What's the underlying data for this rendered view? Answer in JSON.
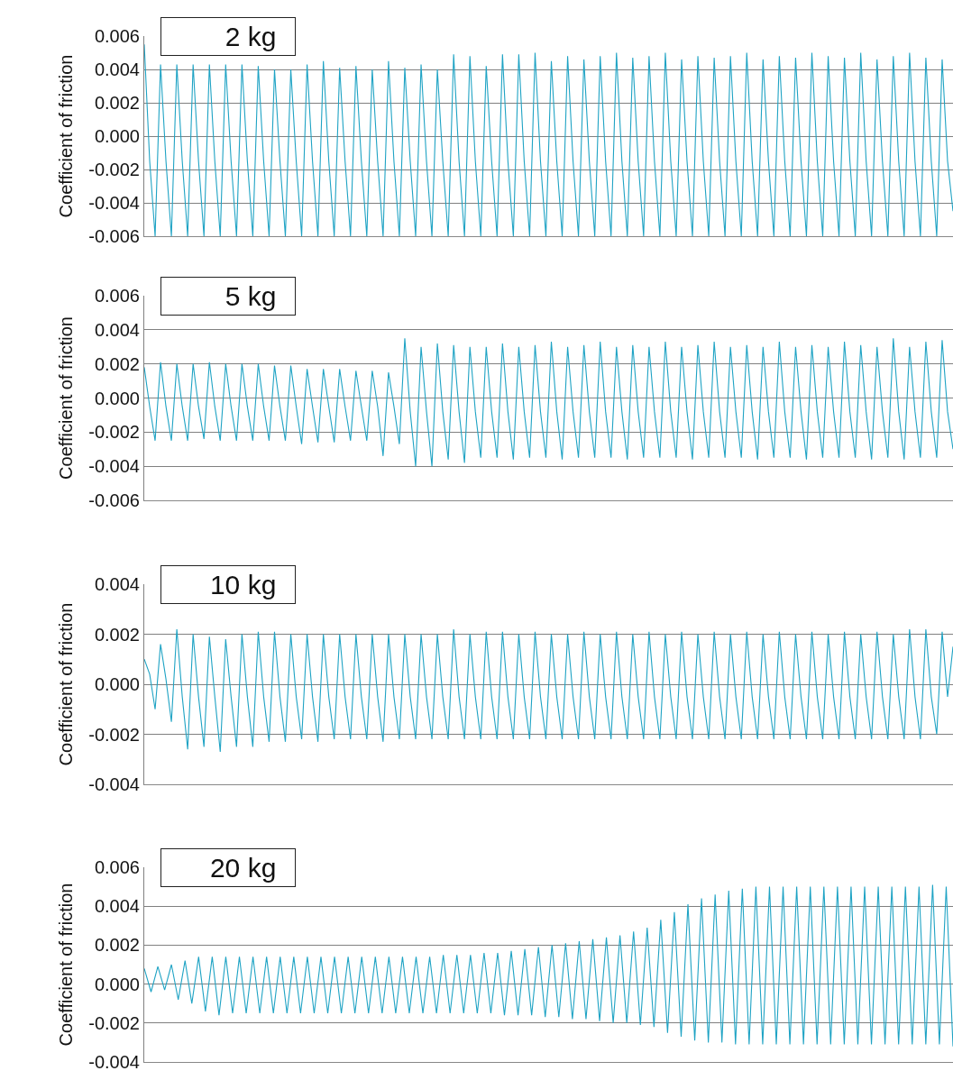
{
  "chart_data": [
    {
      "type": "line",
      "title": "2 kg",
      "ylabel": "Coefficient of friction",
      "ylim": [
        -0.006,
        0.006
      ],
      "yticks": [
        {
          "value": -0.006,
          "label": "-0.006"
        },
        {
          "value": -0.004,
          "label": "-0.004"
        },
        {
          "value": -0.002,
          "label": "-0.002"
        },
        {
          "value": 0,
          "label": "0.000"
        },
        {
          "value": 0.002,
          "label": "0.002"
        },
        {
          "value": 0.004,
          "label": "0.004"
        },
        {
          "value": 0.006,
          "label": "0.006"
        }
      ],
      "grid": "y",
      "tick_labels": "y",
      "marker": "none",
      "line_style": "solid",
      "categories": [
        null,
        null,
        null,
        null,
        null,
        null,
        null,
        null,
        null,
        null,
        null,
        null,
        null,
        null,
        null,
        null,
        null,
        null,
        null,
        null,
        null,
        null,
        null,
        null,
        null,
        null,
        null,
        null,
        null,
        null,
        null,
        null,
        null,
        null,
        null,
        null,
        null,
        null,
        null,
        null,
        null,
        null,
        null,
        null,
        null,
        null,
        null,
        null,
        null,
        null,
        null,
        null,
        null,
        null,
        null,
        null,
        null,
        null,
        null,
        null,
        null,
        null,
        null,
        null,
        null,
        null,
        null,
        null,
        null,
        null,
        null,
        null,
        null,
        null,
        null,
        null,
        null,
        null,
        null,
        null,
        null,
        null,
        null,
        null,
        null,
        null,
        null,
        null,
        null,
        null,
        null,
        null,
        null,
        null,
        null,
        null,
        null,
        null,
        null,
        null,
        null,
        null,
        null,
        null,
        null,
        null,
        null,
        null,
        null,
        null,
        null,
        null,
        null,
        null,
        null,
        null,
        null,
        null,
        null,
        null,
        null,
        null,
        null,
        null,
        null,
        null,
        null,
        null,
        null,
        null,
        null,
        null,
        null,
        null,
        null,
        null,
        null,
        null,
        null,
        null,
        null,
        null,
        null,
        null,
        null,
        null,
        null,
        null,
        null,
        null
      ],
      "series": [
        {
          "color": "#1fa3c4",
          "values": [
            0.0055,
            -0.0015,
            -0.006,
            0.0043,
            -0.0015,
            -0.006,
            0.0043,
            -0.0015,
            -0.006,
            0.0043,
            -0.0015,
            -0.006,
            0.0043,
            -0.0015,
            -0.006,
            0.0043,
            -0.0015,
            -0.006,
            0.0043,
            -0.0015,
            -0.006,
            0.0042,
            -0.0015,
            -0.006,
            0.004,
            -0.0015,
            -0.006,
            0.004,
            -0.0015,
            -0.006,
            0.0043,
            -0.0015,
            -0.006,
            0.0045,
            -0.0015,
            -0.006,
            0.0041,
            -0.0015,
            -0.006,
            0.0042,
            -0.0015,
            -0.006,
            0.004,
            -0.0015,
            -0.006,
            0.0045,
            -0.0015,
            -0.006,
            0.0041,
            -0.0015,
            -0.006,
            0.0043,
            -0.0015,
            -0.006,
            0.004,
            -0.0015,
            -0.006,
            0.0049,
            -0.0015,
            -0.006,
            0.0048,
            -0.0015,
            -0.006,
            0.0042,
            -0.0015,
            -0.006,
            0.0049,
            -0.0015,
            -0.006,
            0.0049,
            -0.0015,
            -0.006,
            0.005,
            -0.0015,
            -0.006,
            0.0045,
            -0.0015,
            -0.006,
            0.0048,
            -0.0015,
            -0.006,
            0.0046,
            -0.0015,
            -0.006,
            0.0048,
            -0.0015,
            -0.006,
            0.005,
            -0.0015,
            -0.006,
            0.0047,
            -0.0015,
            -0.006,
            0.0048,
            -0.0015,
            -0.006,
            0.005,
            -0.0015,
            -0.006,
            0.0046,
            -0.0015,
            -0.006,
            0.0048,
            -0.0015,
            -0.006,
            0.0047,
            -0.0015,
            -0.006,
            0.0048,
            -0.0015,
            -0.006,
            0.005,
            -0.0015,
            -0.006,
            0.0046,
            -0.0015,
            -0.006,
            0.0048,
            -0.0015,
            -0.006,
            0.0047,
            -0.0015,
            -0.006,
            0.005,
            -0.0015,
            -0.006,
            0.0048,
            -0.0015,
            -0.006,
            0.0047,
            -0.0015,
            -0.006,
            0.005,
            -0.0015,
            -0.006,
            0.0046,
            -0.0015,
            -0.006,
            0.0048,
            -0.0015,
            -0.006,
            0.005,
            -0.0015,
            -0.006,
            0.0047,
            -0.0015,
            -0.006,
            0.0046,
            -0.0015,
            -0.0045
          ]
        }
      ]
    },
    {
      "type": "line",
      "title": "5 kg",
      "ylabel": "Coefficient of friction",
      "ylim": [
        -0.006,
        0.006
      ],
      "yticks": [
        {
          "value": -0.006,
          "label": "-0.006"
        },
        {
          "value": -0.004,
          "label": "-0.004"
        },
        {
          "value": -0.002,
          "label": "-0.002"
        },
        {
          "value": 0,
          "label": "0.000"
        },
        {
          "value": 0.002,
          "label": "0.002"
        },
        {
          "value": 0.004,
          "label": "0.004"
        },
        {
          "value": 0.006,
          "label": "0.006"
        }
      ],
      "grid": "y",
      "tick_labels": "y",
      "marker": "none",
      "line_style": "solid",
      "categories": [
        null,
        null,
        null,
        null,
        null,
        null,
        null,
        null,
        null,
        null,
        null,
        null,
        null,
        null,
        null,
        null,
        null,
        null,
        null,
        null,
        null,
        null,
        null,
        null,
        null,
        null,
        null,
        null,
        null,
        null,
        null,
        null,
        null,
        null,
        null,
        null,
        null,
        null,
        null,
        null,
        null,
        null,
        null,
        null,
        null,
        null,
        null,
        null,
        null,
        null,
        null,
        null,
        null,
        null,
        null,
        null,
        null,
        null,
        null,
        null,
        null,
        null,
        null,
        null,
        null,
        null,
        null,
        null,
        null,
        null,
        null,
        null,
        null,
        null,
        null,
        null,
        null,
        null,
        null,
        null,
        null,
        null,
        null,
        null,
        null,
        null,
        null,
        null,
        null,
        null,
        null,
        null,
        null,
        null,
        null,
        null,
        null,
        null,
        null,
        null,
        null,
        null,
        null,
        null,
        null,
        null,
        null,
        null,
        null,
        null,
        null,
        null,
        null,
        null,
        null,
        null,
        null,
        null,
        null,
        null,
        null,
        null,
        null,
        null,
        null,
        null,
        null,
        null,
        null,
        null,
        null,
        null,
        null,
        null,
        null,
        null,
        null,
        null,
        null,
        null,
        null,
        null,
        null,
        null,
        null,
        null,
        null,
        null,
        null,
        null
      ],
      "series": [
        {
          "color": "#1fa3c4",
          "values": [
            0.0018,
            -0.0005,
            -0.0025,
            0.0021,
            -0.0005,
            -0.0025,
            0.002,
            -0.0005,
            -0.0025,
            0.002,
            -0.0005,
            -0.0024,
            0.0021,
            -0.0005,
            -0.0025,
            0.002,
            -0.0005,
            -0.0025,
            0.002,
            -0.0005,
            -0.0025,
            0.002,
            -0.0005,
            -0.0025,
            0.0019,
            -0.0005,
            -0.0025,
            0.0019,
            -0.0005,
            -0.0027,
            0.0017,
            -0.0005,
            -0.0026,
            0.0017,
            -0.0005,
            -0.0026,
            0.0017,
            -0.0005,
            -0.0025,
            0.0016,
            -0.0005,
            -0.0025,
            0.0016,
            -0.0005,
            -0.0034,
            0.0015,
            -0.0005,
            -0.0027,
            0.0035,
            -0.0008,
            -0.004,
            0.003,
            -0.0008,
            -0.004,
            0.0032,
            -0.0008,
            -0.0036,
            0.0031,
            -0.0008,
            -0.0038,
            0.003,
            -0.0008,
            -0.0035,
            0.003,
            -0.0008,
            -0.0035,
            0.0032,
            -0.0008,
            -0.0036,
            0.003,
            -0.0008,
            -0.0035,
            0.0031,
            -0.0008,
            -0.0035,
            0.0033,
            -0.0008,
            -0.0036,
            0.003,
            -0.0008,
            -0.0035,
            0.0031,
            -0.0008,
            -0.0035,
            0.0033,
            -0.0008,
            -0.0035,
            0.003,
            -0.0008,
            -0.0036,
            0.0031,
            -0.0008,
            -0.0035,
            0.003,
            -0.0008,
            -0.0035,
            0.0033,
            -0.0008,
            -0.0035,
            0.003,
            -0.0008,
            -0.0036,
            0.0031,
            -0.0008,
            -0.0035,
            0.0033,
            -0.0008,
            -0.0035,
            0.003,
            -0.0008,
            -0.0035,
            0.0031,
            -0.0008,
            -0.0036,
            0.003,
            -0.0008,
            -0.0035,
            0.0033,
            -0.0008,
            -0.0035,
            0.003,
            -0.0008,
            -0.0036,
            0.0031,
            -0.0008,
            -0.0035,
            0.003,
            -0.0008,
            -0.0035,
            0.0033,
            -0.0008,
            -0.0035,
            0.0031,
            -0.0008,
            -0.0036,
            0.003,
            -0.0008,
            -0.0035,
            0.0035,
            -0.0008,
            -0.0036,
            0.003,
            -0.0008,
            -0.0035,
            0.0033,
            -0.0008,
            -0.0035,
            0.0034,
            -0.0008,
            -0.003
          ]
        }
      ]
    },
    {
      "type": "line",
      "title": "10 kg",
      "ylabel": "Coefficient of friction",
      "ylim": [
        -0.004,
        0.004
      ],
      "yticks": [
        {
          "value": -0.004,
          "label": "-0.004"
        },
        {
          "value": -0.002,
          "label": "-0.002"
        },
        {
          "value": 0,
          "label": "0.000"
        },
        {
          "value": 0.002,
          "label": "0.002"
        },
        {
          "value": 0.004,
          "label": "0.004"
        }
      ],
      "grid": "y",
      "tick_labels": "y",
      "marker": "none",
      "line_style": "solid",
      "categories": [
        null,
        null,
        null,
        null,
        null,
        null,
        null,
        null,
        null,
        null,
        null,
        null,
        null,
        null,
        null,
        null,
        null,
        null,
        null,
        null,
        null,
        null,
        null,
        null,
        null,
        null,
        null,
        null,
        null,
        null,
        null,
        null,
        null,
        null,
        null,
        null,
        null,
        null,
        null,
        null,
        null,
        null,
        null,
        null,
        null,
        null,
        null,
        null,
        null,
        null,
        null,
        null,
        null,
        null,
        null,
        null,
        null,
        null,
        null,
        null,
        null,
        null,
        null,
        null,
        null,
        null,
        null,
        null,
        null,
        null,
        null,
        null,
        null,
        null,
        null,
        null,
        null,
        null,
        null,
        null,
        null,
        null,
        null,
        null,
        null,
        null,
        null,
        null,
        null,
        null,
        null,
        null,
        null,
        null,
        null,
        null,
        null,
        null,
        null,
        null,
        null,
        null,
        null,
        null,
        null,
        null,
        null,
        null,
        null,
        null,
        null,
        null,
        null,
        null,
        null,
        null,
        null,
        null,
        null,
        null,
        null,
        null,
        null,
        null,
        null,
        null,
        null,
        null,
        null,
        null,
        null,
        null,
        null,
        null,
        null,
        null,
        null,
        null,
        null,
        null,
        null,
        null,
        null,
        null,
        null,
        null,
        null,
        null,
        null,
        null
      ],
      "series": [
        {
          "color": "#1fa3c4",
          "values": [
            0.001,
            0.0004,
            -0.001,
            0.0016,
            0.0002,
            -0.0015,
            0.0022,
            -0.0005,
            -0.0026,
            0.002,
            -0.0005,
            -0.0025,
            0.0019,
            -0.0005,
            -0.0027,
            0.0018,
            -0.0005,
            -0.0025,
            0.002,
            -0.0005,
            -0.0025,
            0.0021,
            -0.0005,
            -0.0023,
            0.0021,
            -0.0005,
            -0.0023,
            0.002,
            -0.0005,
            -0.0022,
            0.002,
            -0.0005,
            -0.0023,
            0.002,
            -0.0005,
            -0.0022,
            0.002,
            -0.0005,
            -0.0022,
            0.002,
            -0.0005,
            -0.0022,
            0.002,
            -0.0005,
            -0.0023,
            0.002,
            -0.0005,
            -0.0022,
            0.002,
            -0.0005,
            -0.0022,
            0.002,
            -0.0005,
            -0.0022,
            0.002,
            -0.0005,
            -0.0022,
            0.0022,
            -0.0005,
            -0.0022,
            0.002,
            -0.0005,
            -0.0022,
            0.0021,
            -0.0005,
            -0.0022,
            0.0021,
            -0.0005,
            -0.0022,
            0.002,
            -0.0005,
            -0.0022,
            0.0021,
            -0.0005,
            -0.0022,
            0.002,
            -0.0005,
            -0.0022,
            0.002,
            -0.0005,
            -0.0022,
            0.0021,
            -0.0005,
            -0.0022,
            0.002,
            -0.0005,
            -0.0022,
            0.0021,
            -0.0005,
            -0.0022,
            0.002,
            -0.0005,
            -0.0022,
            0.0021,
            -0.0005,
            -0.0022,
            0.002,
            -0.0005,
            -0.0022,
            0.0021,
            -0.0005,
            -0.0022,
            0.002,
            -0.0005,
            -0.0022,
            0.0021,
            -0.0005,
            -0.0022,
            0.002,
            -0.0005,
            -0.0022,
            0.0021,
            -0.0005,
            -0.0022,
            0.002,
            -0.0005,
            -0.0022,
            0.0021,
            -0.0005,
            -0.0022,
            0.002,
            -0.0005,
            -0.0022,
            0.0021,
            -0.0005,
            -0.0022,
            0.002,
            -0.0005,
            -0.0022,
            0.0021,
            -0.0005,
            -0.0022,
            0.002,
            -0.0005,
            -0.0022,
            0.0021,
            -0.0005,
            -0.0022,
            0.002,
            -0.0005,
            -0.0022,
            0.0022,
            -0.0005,
            -0.0022,
            0.0022,
            -0.0005,
            -0.002,
            0.0021,
            -0.0005,
            0.0015
          ]
        }
      ]
    },
    {
      "type": "line",
      "title": "20 kg",
      "ylabel": "Coefficient of friction",
      "ylim": [
        -0.004,
        0.006
      ],
      "yticks": [
        {
          "value": -0.004,
          "label": "-0.004"
        },
        {
          "value": -0.002,
          "label": "-0.002"
        },
        {
          "value": 0,
          "label": "0.000"
        },
        {
          "value": 0.002,
          "label": "0.002"
        },
        {
          "value": 0.004,
          "label": "0.004"
        },
        {
          "value": 0.006,
          "label": "0.006"
        }
      ],
      "grid": "y",
      "tick_labels": "y",
      "marker": "none",
      "line_style": "solid",
      "categories": [
        null,
        null,
        null,
        null,
        null,
        null,
        null,
        null,
        null,
        null,
        null,
        null,
        null,
        null,
        null,
        null,
        null,
        null,
        null,
        null,
        null,
        null,
        null,
        null,
        null,
        null,
        null,
        null,
        null,
        null,
        null,
        null,
        null,
        null,
        null,
        null,
        null,
        null,
        null,
        null,
        null,
        null,
        null,
        null,
        null,
        null,
        null,
        null,
        null,
        null,
        null,
        null,
        null,
        null,
        null,
        null,
        null,
        null,
        null,
        null,
        null,
        null,
        null,
        null,
        null,
        null,
        null,
        null,
        null,
        null,
        null,
        null,
        null,
        null,
        null,
        null,
        null,
        null,
        null,
        null,
        null,
        null,
        null,
        null,
        null,
        null,
        null,
        null,
        null,
        null,
        null,
        null,
        null,
        null,
        null,
        null,
        null,
        null,
        null,
        null,
        null,
        null,
        null,
        null,
        null,
        null,
        null,
        null,
        null,
        null,
        null,
        null,
        null,
        null,
        null,
        null,
        null,
        null,
        null,
        null
      ],
      "series": [
        {
          "color": "#1fa3c4",
          "values": [
            0.0008,
            -0.0004,
            0.0009,
            -0.0003,
            0.001,
            -0.0008,
            0.0012,
            -0.001,
            0.0014,
            -0.0014,
            0.0014,
            -0.0016,
            0.0014,
            -0.0015,
            0.0014,
            -0.0015,
            0.0014,
            -0.0015,
            0.0014,
            -0.0015,
            0.0014,
            -0.0015,
            0.0014,
            -0.0015,
            0.0014,
            -0.0015,
            0.0014,
            -0.0015,
            0.0014,
            -0.0015,
            0.0014,
            -0.0015,
            0.0014,
            -0.0015,
            0.0014,
            -0.0015,
            0.0014,
            -0.0015,
            0.0014,
            -0.0015,
            0.0014,
            -0.0015,
            0.0014,
            -0.0015,
            0.0015,
            -0.0015,
            0.0015,
            -0.0015,
            0.0015,
            -0.0015,
            0.0016,
            -0.0015,
            0.0016,
            -0.0016,
            0.0017,
            -0.0016,
            0.0018,
            -0.0016,
            0.0019,
            -0.0017,
            0.002,
            -0.0017,
            0.0021,
            -0.0018,
            0.0022,
            -0.0018,
            0.0023,
            -0.0019,
            0.0024,
            -0.002,
            0.0025,
            -0.002,
            0.0027,
            -0.0021,
            0.0029,
            -0.0022,
            0.0033,
            -0.0025,
            0.0037,
            -0.0027,
            0.0041,
            -0.0029,
            0.0044,
            -0.003,
            0.0046,
            -0.003,
            0.0048,
            -0.0031,
            0.0049,
            -0.0031,
            0.005,
            -0.0031,
            0.005,
            -0.0031,
            0.005,
            -0.0031,
            0.005,
            -0.0031,
            0.005,
            -0.0031,
            0.005,
            -0.0031,
            0.005,
            -0.0031,
            0.005,
            -0.0031,
            0.005,
            -0.0031,
            0.005,
            -0.0031,
            0.005,
            -0.0031,
            0.005,
            -0.0031,
            0.005,
            -0.0031,
            0.0051,
            -0.0031,
            0.005,
            -0.0032
          ]
        }
      ]
    }
  ]
}
